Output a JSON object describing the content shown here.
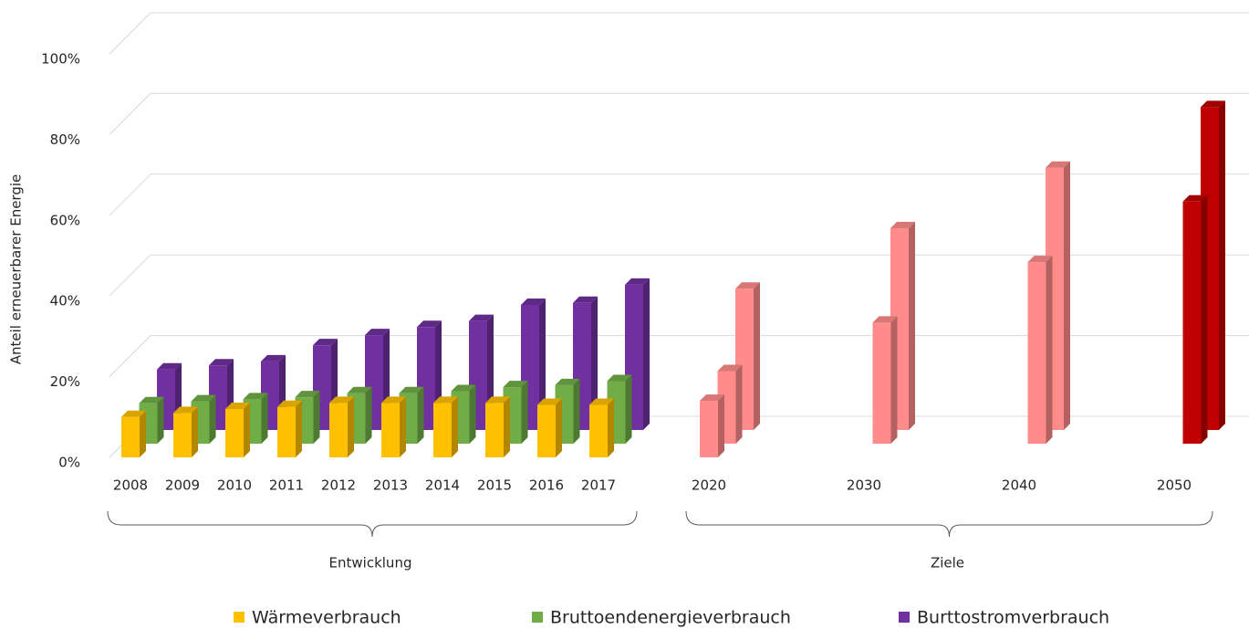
{
  "chart_data": {
    "type": "bar3d",
    "y_axis_label": "Anteil erneuerbarer Energie",
    "categories": [
      "2008",
      "2009",
      "2010",
      "2011",
      "2012",
      "2013",
      "2014",
      "2015",
      "2016",
      "2017",
      "2020",
      "2030",
      "2040",
      "2050"
    ],
    "series": [
      {
        "name": "Wärmeverbrauch",
        "color": "#ffc000",
        "values": [
          10,
          11,
          12,
          12.5,
          13.5,
          13.5,
          13.5,
          13.5,
          13,
          13,
          14,
          null,
          null,
          null
        ]
      },
      {
        "name": "Bruttoendenergieverbrauch",
        "color": "#70ad47",
        "values": [
          10,
          10.5,
          11,
          11.5,
          12.5,
          12.5,
          13,
          14,
          14.5,
          15.5,
          18,
          30,
          45,
          60
        ]
      },
      {
        "name": "Burttostromverbrauch",
        "color": "#7030a0",
        "values": [
          15,
          16,
          17,
          21,
          23.5,
          25.5,
          27,
          31,
          31.5,
          36,
          35,
          50,
          65,
          80
        ]
      }
    ],
    "category_colors": [
      null,
      null,
      null,
      null,
      null,
      null,
      null,
      null,
      null,
      null,
      "#ff8b8b",
      "#ff8b8b",
      "#ff8b8b",
      "#c00000"
    ],
    "groups": [
      {
        "label": "Entwicklung",
        "first": "2008",
        "last": "2017"
      },
      {
        "label": "Ziele",
        "first": "2020",
        "last": "2050"
      }
    ],
    "ylim": [
      0,
      100
    ],
    "yticks": [
      {
        "value": 0,
        "label": "0%"
      },
      {
        "value": 20,
        "label": "20%"
      },
      {
        "value": 40,
        "label": "40%"
      },
      {
        "value": 60,
        "label": "60%"
      },
      {
        "value": 80,
        "label": "80%"
      },
      {
        "value": 100,
        "label": "100%"
      }
    ],
    "grid": true,
    "legend": "bottom"
  }
}
